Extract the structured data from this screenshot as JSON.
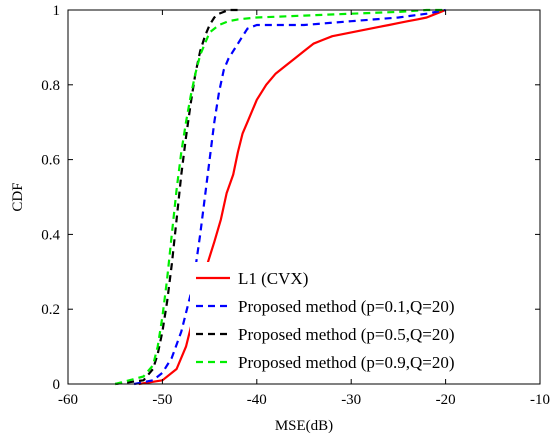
{
  "chart_data": {
    "type": "line",
    "title": "",
    "xlabel": "MSE(dB)",
    "ylabel": "CDF",
    "xlim": [
      -60,
      -10
    ],
    "ylim": [
      0,
      1
    ],
    "xticks": [
      -60,
      -50,
      -40,
      -30,
      -20,
      -10
    ],
    "yticks": [
      0,
      0.2,
      0.4,
      0.6,
      0.8,
      1
    ],
    "xtick_labels": [
      "-60",
      "-50",
      "-40",
      "-30",
      "-20",
      "-10"
    ],
    "ytick_labels": [
      "0",
      "0.2",
      "0.4",
      "0.6",
      "0.8",
      "1"
    ],
    "grid": false,
    "legend_position": "bottom-right",
    "series": [
      {
        "name": "L1 (CVX)",
        "color": "#ff0000",
        "style": "solid",
        "x": [
          -52.5,
          -50,
          -48.5,
          -47.5,
          -46.5,
          -45.5,
          -44.5,
          -43.8,
          -43.2,
          -42.5,
          -42,
          -41.5,
          -41,
          -40,
          -39,
          -38,
          -37,
          -36,
          -35,
          -34,
          -33,
          -32,
          -31,
          -30,
          -29,
          -28,
          -27,
          -26,
          -25,
          -24,
          -23,
          -22,
          -21,
          -20
        ],
        "y": [
          0,
          0.01,
          0.04,
          0.1,
          0.2,
          0.3,
          0.38,
          0.44,
          0.51,
          0.56,
          0.62,
          0.67,
          0.7,
          0.76,
          0.8,
          0.83,
          0.85,
          0.87,
          0.89,
          0.91,
          0.92,
          0.93,
          0.935,
          0.94,
          0.945,
          0.95,
          0.955,
          0.96,
          0.965,
          0.97,
          0.975,
          0.98,
          0.99,
          1.0
        ]
      },
      {
        "name": "Proposed method (p=0.1,Q=20)",
        "color": "#0000ff",
        "style": "dashed",
        "x": [
          -53,
          -51,
          -50,
          -49,
          -48,
          -47,
          -46.5,
          -46,
          -45.5,
          -45,
          -44.5,
          -44,
          -43.5,
          -43,
          -42.5,
          -42,
          -41.5,
          -41,
          -40,
          -35,
          -30,
          -25,
          -22,
          -20
        ],
        "y": [
          0,
          0.01,
          0.03,
          0.07,
          0.14,
          0.24,
          0.31,
          0.4,
          0.5,
          0.6,
          0.7,
          0.78,
          0.84,
          0.87,
          0.89,
          0.91,
          0.93,
          0.95,
          0.96,
          0.96,
          0.97,
          0.98,
          0.99,
          1.0
        ]
      },
      {
        "name": "Proposed method (p=0.5,Q=20)",
        "color": "#000000",
        "style": "dashed",
        "x": [
          -55,
          -52,
          -51,
          -50.5,
          -50,
          -49.5,
          -49,
          -48.5,
          -48,
          -47.5,
          -47,
          -46.5,
          -46,
          -45.5,
          -45,
          -44.5,
          -44,
          -43.5,
          -43,
          -42
        ],
        "y": [
          0,
          0.01,
          0.04,
          0.08,
          0.14,
          0.22,
          0.32,
          0.44,
          0.56,
          0.66,
          0.75,
          0.83,
          0.89,
          0.93,
          0.96,
          0.98,
          0.99,
          0.995,
          1.0,
          1.0
        ]
      },
      {
        "name": "Proposed method (p=0.9,Q=20)",
        "color": "#00ee00",
        "style": "dashed",
        "x": [
          -55,
          -52,
          -51,
          -50.5,
          -50,
          -49.5,
          -49,
          -48.5,
          -48,
          -47.5,
          -47,
          -46.5,
          -46,
          -45.5,
          -45,
          -44,
          -43,
          -42,
          -40,
          -35,
          -30,
          -25,
          -22,
          -20
        ],
        "y": [
          0,
          0.02,
          0.05,
          0.1,
          0.18,
          0.28,
          0.4,
          0.52,
          0.62,
          0.7,
          0.77,
          0.83,
          0.88,
          0.91,
          0.94,
          0.96,
          0.97,
          0.975,
          0.98,
          0.985,
          0.99,
          0.995,
          1.0,
          1.0
        ]
      }
    ]
  }
}
